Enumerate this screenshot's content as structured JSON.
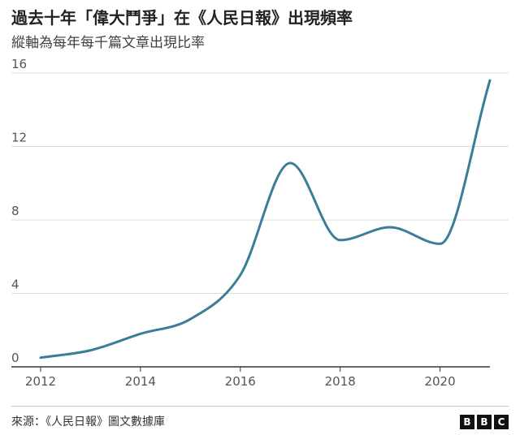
{
  "title": "過去十年「偉大鬥爭」在《人民日報》出現頻率",
  "subtitle": "縱軸為每年每千篇文章出現比率",
  "source": "來源：《人民日報》圖文數據庫",
  "logo": {
    "letters": [
      "B",
      "B",
      "C"
    ]
  },
  "colors": {
    "line": "#3b7d98",
    "grid": "#dcdcdc",
    "axis": "#333333"
  },
  "chart_data": {
    "type": "line",
    "x": [
      2012,
      2013,
      2014,
      2015,
      2016,
      2017,
      2018,
      2019,
      2020,
      2021
    ],
    "series": [
      {
        "values": [
          0.5,
          0.9,
          1.8,
          2.6,
          5.0,
          11.1,
          6.9,
          7.6,
          6.7,
          15.6
        ]
      }
    ],
    "xlim": [
      2012,
      2021
    ],
    "ylim": [
      0,
      16
    ],
    "yticks": [
      0,
      4,
      8,
      12,
      16
    ],
    "xticks": [
      2012,
      2014,
      2016,
      2018,
      2020
    ],
    "xlabel": "",
    "ylabel": "",
    "grid": "horizontal",
    "legend": "none"
  }
}
